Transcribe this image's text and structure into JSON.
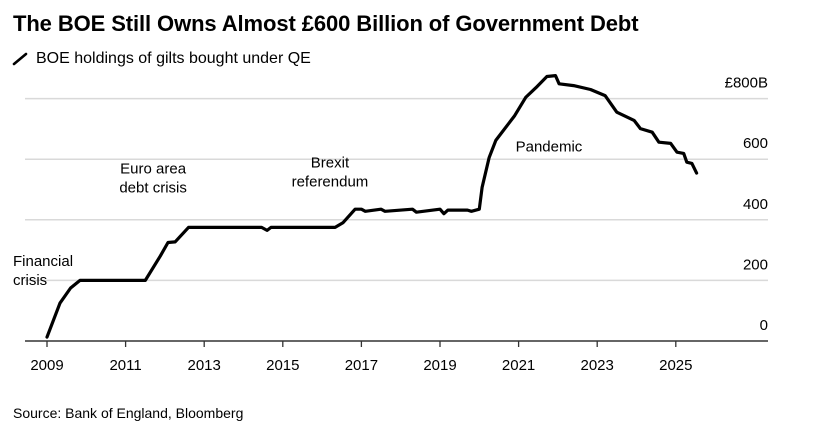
{
  "title": "The BOE Still Owns Almost £600 Billion of Government Debt",
  "legend": {
    "icon": "line-slash-icon",
    "label": "BOE holdings of gilts bought under QE"
  },
  "source": "Source: Bank of England, Bloomberg",
  "colors": {
    "line": "#000000",
    "grid": "#d9d9d9",
    "axis": "#333333"
  },
  "chart_data": {
    "type": "line",
    "title": "The BOE Still Owns Almost £600 Billion of Government Debt",
    "xlim": [
      2008.3,
      2027.4
    ],
    "ylim": [
      0,
      800
    ],
    "grid": true,
    "y_axis_side": "right",
    "x_ticks": [
      "2009",
      "2011",
      "2013",
      "2015",
      "2017",
      "2019",
      "2021",
      "2023",
      "2025"
    ],
    "y_ticks": [
      {
        "value": 0,
        "label": "0"
      },
      {
        "value": 200,
        "label": "200"
      },
      {
        "value": 400,
        "label": "400"
      },
      {
        "value": 600,
        "label": "600"
      },
      {
        "value": 800,
        "label": "£800B"
      }
    ],
    "series": [
      {
        "name": "BOE holdings of gilts bought under QE",
        "x": [
          2009.0,
          2009.33,
          2009.6,
          2009.84,
          2011.5,
          2011.88,
          2012.08,
          2012.26,
          2012.6,
          2014.46,
          2014.6,
          2014.7,
          2015.7,
          2016.33,
          2016.53,
          2016.84,
          2017.0,
          2017.1,
          2017.5,
          2017.6,
          2018.3,
          2018.4,
          2019.0,
          2019.1,
          2019.2,
          2019.7,
          2019.8,
          2020.0,
          2020.07,
          2020.25,
          2020.42,
          2020.9,
          2021.18,
          2021.44,
          2021.72,
          2021.94,
          2022.03,
          2022.4,
          2022.83,
          2023.2,
          2023.5,
          2023.94,
          2024.1,
          2024.4,
          2024.57,
          2024.87,
          2025.03,
          2025.2,
          2025.28,
          2025.41,
          2025.53
        ],
        "y": [
          13,
          125,
          175,
          200,
          200,
          280,
          325,
          327,
          375,
          375,
          365,
          375,
          375,
          375,
          390,
          435,
          435,
          428,
          435,
          428,
          435,
          425,
          435,
          420,
          432,
          432,
          428,
          435,
          507,
          605,
          662,
          744,
          804,
          836,
          873,
          876,
          849,
          843,
          830,
          810,
          755,
          728,
          701,
          689,
          656,
          652,
          623,
          619,
          590,
          586,
          554
        ]
      }
    ],
    "annotations": [
      {
        "lines": [
          "Financial",
          "crisis"
        ],
        "x": 2009.0,
        "y": 265
      },
      {
        "lines": [
          "Euro area",
          "debt crisis"
        ],
        "x": 2011.7,
        "y": 490
      },
      {
        "lines": [
          "Brexit",
          "referendum"
        ],
        "x": 2016.2,
        "y": 510
      },
      {
        "lines": [
          "Pandemic"
        ],
        "x": 2021.8,
        "y": 625
      }
    ]
  }
}
